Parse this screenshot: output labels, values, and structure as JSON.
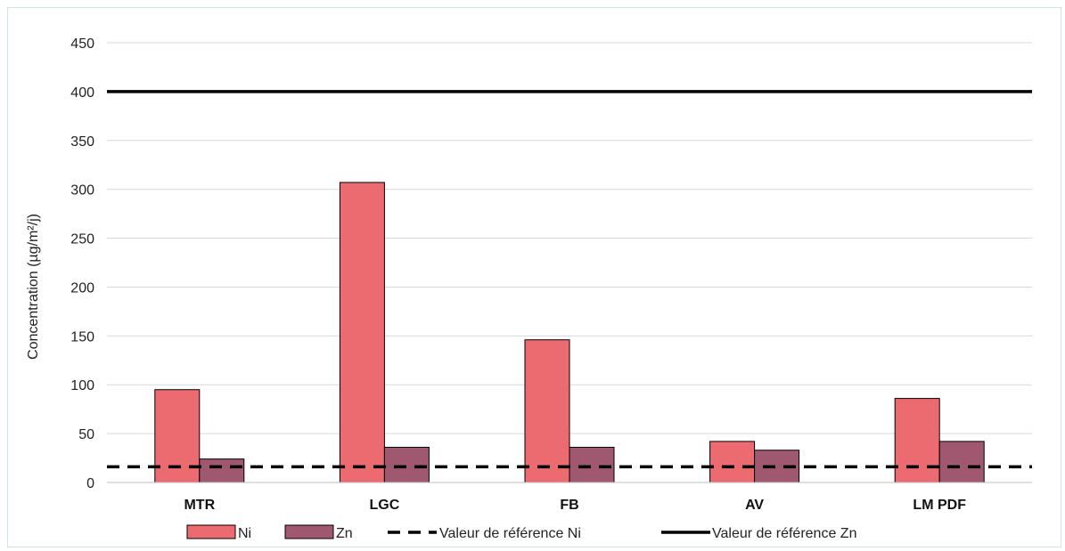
{
  "chart_data": {
    "type": "bar",
    "ylabel": "Concentration (µg/m²/j)",
    "ylim": [
      0,
      450
    ],
    "yticks": [
      "0",
      "50",
      "100",
      "150",
      "200",
      "250",
      "300",
      "350",
      "400",
      "450"
    ],
    "grid": true,
    "legend_position": "bottom",
    "categories": [
      "MTR",
      "LGC",
      "FB",
      "AV",
      "LM PDF"
    ],
    "series": [
      {
        "name": "Ni",
        "values": [
          95,
          307,
          146,
          42,
          86
        ],
        "color": "#ec6b70"
      },
      {
        "name": "Zn",
        "values": [
          24,
          36,
          36,
          33,
          42
        ],
        "color": "#a05870"
      }
    ],
    "reference_lines": [
      {
        "name": "Valeur de référence Ni",
        "value": 16,
        "style": "dashed",
        "color": "#000000"
      },
      {
        "name": "Valeur de référence Zn",
        "value": 400,
        "style": "solid",
        "color": "#000000"
      }
    ]
  }
}
